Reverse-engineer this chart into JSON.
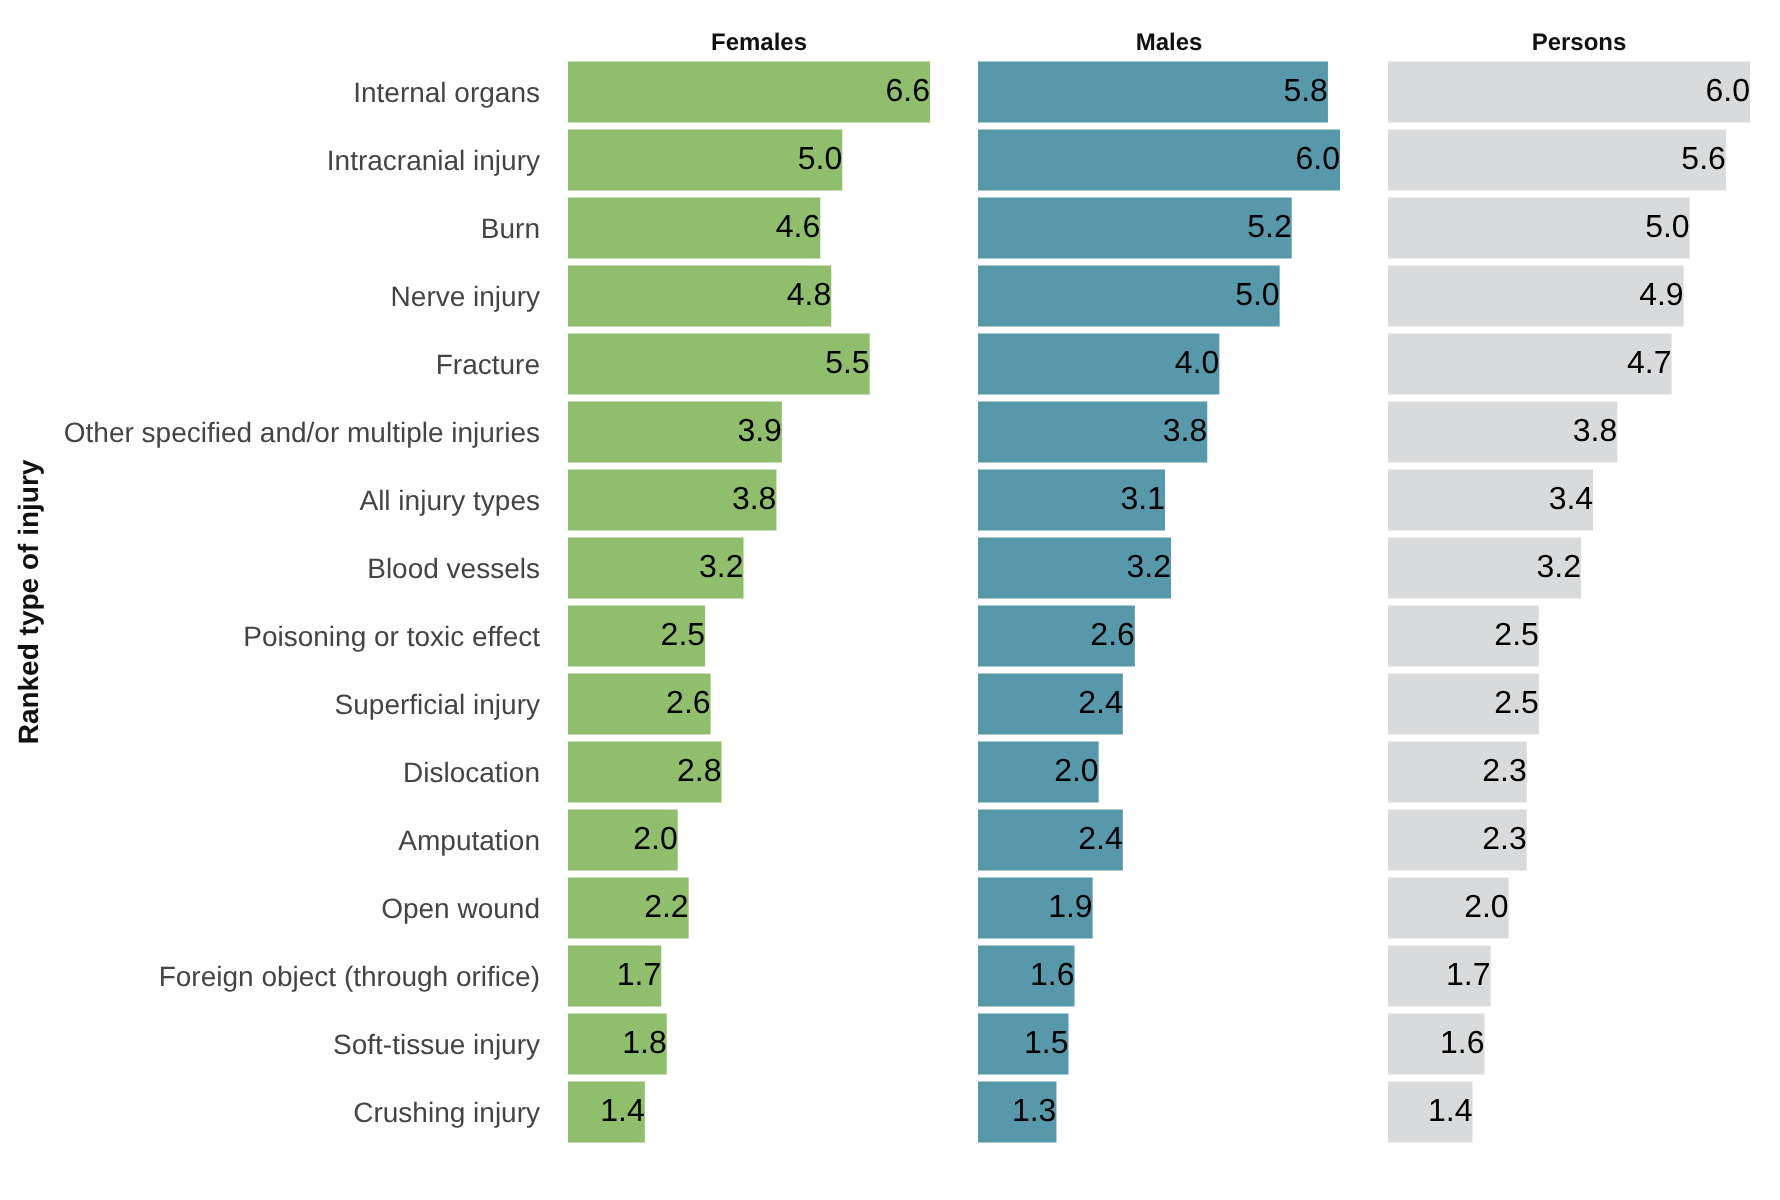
{
  "chart_data": [
    {
      "type": "bar",
      "orientation": "horizontal",
      "title": "Females",
      "ylabel": "Ranked type of injury",
      "categories": [
        "Internal organs",
        "Intracranial injury",
        "Burn",
        "Nerve injury",
        "Fracture",
        "Other specified and/or multiple injuries",
        "All injury types",
        "Blood vessels",
        "Poisoning or toxic effect",
        "Superficial injury",
        "Dislocation",
        "Amputation",
        "Open wound",
        "Foreign object (through orifice)",
        "Soft-tissue injury",
        "Crushing injury"
      ],
      "values": [
        6.6,
        5.0,
        4.6,
        4.8,
        5.5,
        3.9,
        3.8,
        3.2,
        2.5,
        2.6,
        2.8,
        2.0,
        2.2,
        1.7,
        1.8,
        1.4
      ],
      "value_labels": [
        "6.6",
        "5.0",
        "4.6",
        "4.8",
        "5.5",
        "3.9",
        "3.8",
        "3.2",
        "2.5",
        "2.6",
        "2.8",
        "2.0",
        "2.2",
        "1.7",
        "1.8",
        "1.4"
      ],
      "color": "#8fbe6d",
      "tick_labels": "y"
    },
    {
      "type": "bar",
      "orientation": "horizontal",
      "title": "Males",
      "categories": [
        null,
        null,
        null,
        null,
        null,
        null,
        null,
        null,
        null,
        null,
        null,
        null,
        null,
        null,
        null,
        null
      ],
      "values": [
        5.8,
        6.0,
        5.2,
        5.0,
        4.0,
        3.8,
        3.1,
        3.2,
        2.6,
        2.4,
        2.0,
        2.4,
        1.9,
        1.6,
        1.5,
        1.3
      ],
      "value_labels": [
        "5.8",
        "6.0",
        "5.2",
        "5.0",
        "4.0",
        "3.8",
        "3.1",
        "3.2",
        "2.6",
        "2.4",
        "2.0",
        "2.4",
        "1.9",
        "1.6",
        "1.5",
        "1.3"
      ],
      "color": "#5898ab"
    },
    {
      "type": "bar",
      "orientation": "horizontal",
      "title": "Persons",
      "categories": [
        null,
        null,
        null,
        null,
        null,
        null,
        null,
        null,
        null,
        null,
        null,
        null,
        null,
        null,
        null,
        null
      ],
      "values": [
        6.0,
        5.6,
        5.0,
        4.9,
        4.7,
        3.8,
        3.4,
        3.2,
        2.5,
        2.5,
        2.3,
        2.3,
        2.0,
        1.7,
        1.6,
        1.4
      ],
      "value_labels": [
        "6.0",
        "5.6",
        "5.0",
        "4.9",
        "4.7",
        "3.8",
        "3.4",
        "3.2",
        "2.5",
        "2.5",
        "2.3",
        "2.3",
        "2.0",
        "1.7",
        "1.6",
        "1.4"
      ],
      "color": "#d9dadb"
    }
  ]
}
